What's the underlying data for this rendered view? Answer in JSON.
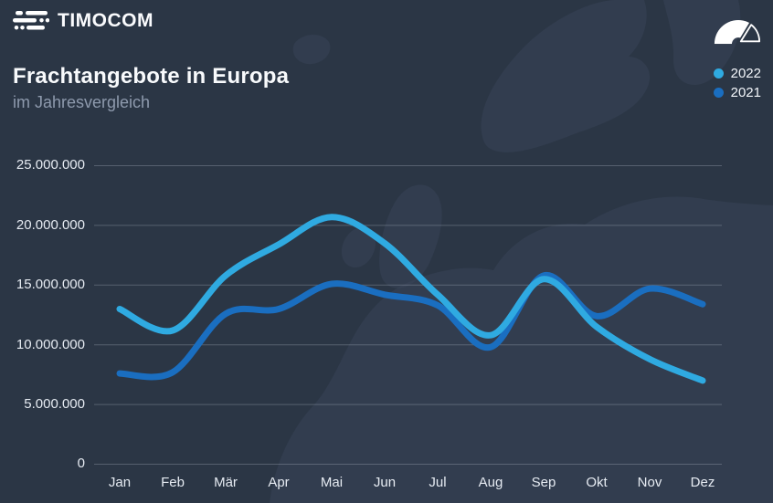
{
  "header": {
    "brand": "TIMOCOM"
  },
  "title": {
    "main": "Frachtangebote in Europa",
    "subtitle": "im Jahresvergleich"
  },
  "legend": [
    {
      "label": "2022",
      "color": "#2FAAE1"
    },
    {
      "label": "2021",
      "color": "#1A6EC0"
    }
  ],
  "chart_data": {
    "type": "line",
    "title": "Frachtangebote in Europa",
    "subtitle": "im Jahresvergleich",
    "categories": [
      "Jan",
      "Feb",
      "Mär",
      "Apr",
      "Mai",
      "Jun",
      "Jul",
      "Aug",
      "Sep",
      "Okt",
      "Nov",
      "Dez"
    ],
    "series": [
      {
        "name": "2022",
        "color": "#2FAAE1",
        "values": [
          13000000,
          11200000,
          15800000,
          18400000,
          20700000,
          18500000,
          14200000,
          10800000,
          15500000,
          11500000,
          8800000,
          7000000
        ]
      },
      {
        "name": "2021",
        "color": "#1A6EC0",
        "values": [
          7600000,
          7700000,
          12600000,
          13000000,
          15100000,
          14200000,
          13300000,
          9800000,
          15800000,
          12400000,
          14700000,
          13400000
        ]
      }
    ],
    "ylabel": "",
    "xlabel": "",
    "ylim": [
      0,
      25000000
    ],
    "y_ticks": [
      0,
      5000000,
      10000000,
      15000000,
      20000000,
      25000000
    ],
    "y_tick_labels": [
      "25.000.000",
      "20.000.000",
      "15.000.000",
      "10.000.000",
      "5.000.000",
      "0"
    ],
    "grid": true,
    "legend_position": "top-right"
  },
  "colors": {
    "background": "#2B3645",
    "map_silhouette": "#3B475C",
    "gridline": "rgba(214,222,235,0.25)",
    "text_primary": "#F8FAFC",
    "text_muted": "#8E9AAD",
    "series_2022": "#2FAAE1",
    "series_2021": "#1A6EC0"
  }
}
